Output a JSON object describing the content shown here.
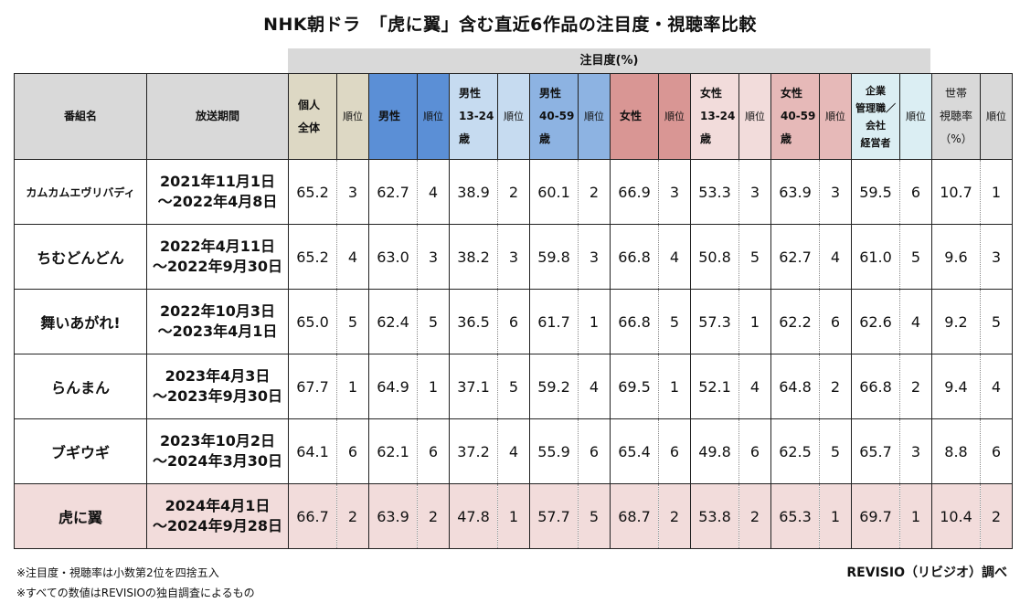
{
  "title": "NHK朝ドラ　「虎に翼」含む直近6作品の注目度・視聴率比較",
  "group_header": "注目度(%)",
  "headers": {
    "program": "番組名",
    "period": "放送期間",
    "rank": "順位",
    "all": [
      "個人",
      "全体"
    ],
    "male": [
      "男性"
    ],
    "male1324": [
      "男性",
      "13-24",
      "歳"
    ],
    "male4059": [
      "男性",
      "40-59",
      "歳"
    ],
    "female": [
      "女性"
    ],
    "female1324": [
      "女性",
      "13-24",
      "歳"
    ],
    "female4059": [
      "女性",
      "40-59",
      "歳"
    ],
    "exec": [
      "企業",
      "管理職／",
      "会社",
      "経営者"
    ],
    "household": [
      "世帯",
      "視聴率",
      "（%）"
    ]
  },
  "rows": [
    {
      "name": "カムカムエヴリバディ",
      "period1": "2021年11月1日",
      "period2": "～2022年4月8日",
      "cells": [
        "65.2",
        "3",
        "62.7",
        "4",
        "38.9",
        "2",
        "60.1",
        "2",
        "66.9",
        "3",
        "53.3",
        "3",
        "63.9",
        "3",
        "59.5",
        "6",
        "10.7",
        "1"
      ]
    },
    {
      "name": "ちむどんどん",
      "period1": "2022年4月11日",
      "period2": "～2022年9月30日",
      "cells": [
        "65.2",
        "4",
        "63.0",
        "3",
        "38.2",
        "3",
        "59.8",
        "3",
        "66.8",
        "4",
        "50.8",
        "5",
        "62.7",
        "4",
        "61.0",
        "5",
        "9.6",
        "3"
      ]
    },
    {
      "name": "舞いあがれ!",
      "period1": "2022年10月3日",
      "period2": "～2023年4月1日",
      "cells": [
        "65.0",
        "5",
        "62.4",
        "5",
        "36.5",
        "6",
        "61.7",
        "1",
        "66.8",
        "5",
        "57.3",
        "1",
        "62.2",
        "6",
        "62.6",
        "4",
        "9.2",
        "5"
      ]
    },
    {
      "name": "らんまん",
      "period1": "2023年4月3日",
      "period2": "～2023年9月30日",
      "cells": [
        "67.7",
        "1",
        "64.9",
        "1",
        "37.1",
        "5",
        "59.2",
        "4",
        "69.5",
        "1",
        "52.1",
        "4",
        "64.8",
        "2",
        "66.8",
        "2",
        "9.4",
        "4"
      ]
    },
    {
      "name": "ブギウギ",
      "period1": "2023年10月2日",
      "period2": "～2024年3月30日",
      "cells": [
        "64.1",
        "6",
        "62.1",
        "6",
        "37.2",
        "4",
        "55.9",
        "6",
        "65.4",
        "6",
        "49.8",
        "6",
        "62.5",
        "5",
        "65.7",
        "3",
        "8.8",
        "6"
      ]
    },
    {
      "name": "虎に翼",
      "period1": "2024年4月1日",
      "period2": "～2024年9月28日",
      "cells": [
        "66.7",
        "2",
        "63.9",
        "2",
        "47.8",
        "1",
        "57.7",
        "5",
        "68.7",
        "2",
        "53.8",
        "2",
        "65.3",
        "1",
        "69.7",
        "1",
        "10.4",
        "2"
      ]
    }
  ],
  "footnotes": [
    "※注目度・視聴率は小数第2位を四捨五入",
    "※すべての数値はREVISIOの独自調査によるもの"
  ],
  "credit": "REVISIO（リビジオ）調べ",
  "colors": {
    "gray": "#d9d9d9",
    "khaki": "#ddd8c4",
    "blue": "#5b8fd6",
    "light_blue": "#c6dbf0",
    "mid_blue": "#8db3e2",
    "red": "#d99694",
    "pink": "#f2dcdb",
    "rose": "#e6b9b8",
    "teal": "#dbeef3"
  }
}
